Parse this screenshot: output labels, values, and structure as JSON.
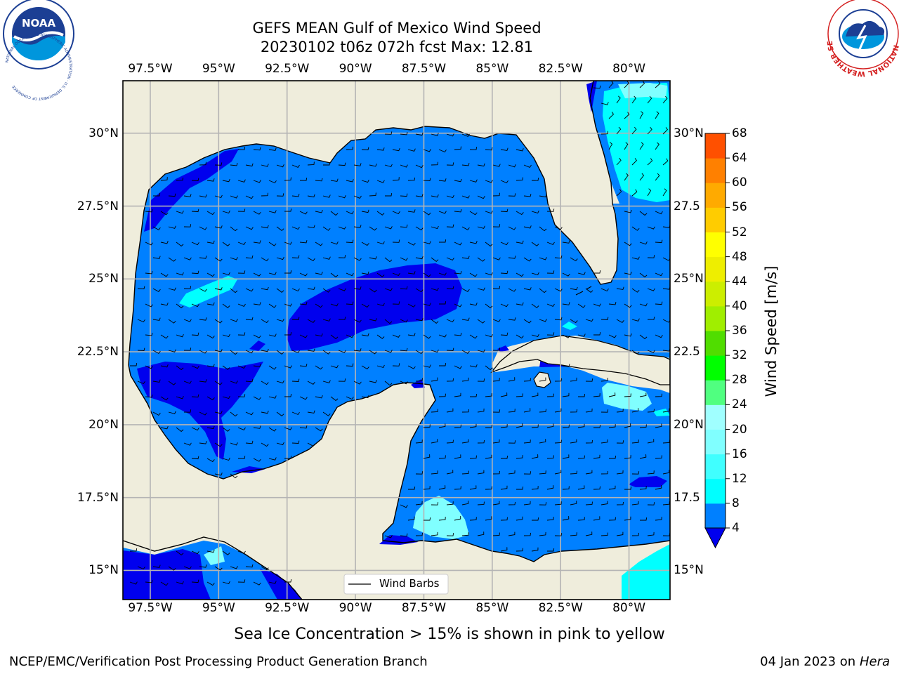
{
  "title": {
    "line1": "GEFS MEAN Gulf of Mexico Wind Speed",
    "line2": "20230102 t06z 072h fcst   Max: 12.81"
  },
  "axes": {
    "lon_labels": [
      "97.5°W",
      "95°W",
      "92.5°W",
      "90°W",
      "87.5°W",
      "85°W",
      "82.5°W",
      "80°W"
    ],
    "lat_labels_left": [
      "30°N",
      "27.5°N",
      "25°N",
      "22.5°N",
      "20°N",
      "17.5°N",
      "15°N"
    ],
    "lat_labels_right": [
      "30°N",
      "27.5",
      "25°N",
      "22.5",
      "20°N",
      "17.5",
      "15°N"
    ]
  },
  "colorbar": {
    "label": "Wind Speed [m/s]",
    "ticks": [
      "4",
      "8",
      "12",
      "16",
      "20",
      "24",
      "28",
      "32",
      "36",
      "40",
      "44",
      "48",
      "52",
      "56",
      "60",
      "64",
      "68"
    ],
    "colors": [
      "#0080ff",
      "#00ffff",
      "#40ffff",
      "#80ffff",
      "#a0ffff",
      "#50ff80",
      "#00ff00",
      "#50dd00",
      "#a0ee00",
      "#ccee00",
      "#eeee00",
      "#ffff00",
      "#ffcc00",
      "#ffaa00",
      "#ff8000",
      "#ff5000",
      "#ff2000",
      "#ff0000"
    ],
    "under_color": "#0000ee"
  },
  "legend": {
    "label": "Wind Barbs"
  },
  "note": "Sea Ice Concentration > 15% is shown in pink to yellow",
  "footer": {
    "left": "NCEP/EMC/Verification Post Processing Product Generation Branch",
    "right_prefix": "04 Jan 2023 on ",
    "right_italic": "Hera"
  },
  "logos": {
    "noaa": "NOAA",
    "noaa_ring": "NATIONAL OCEANIC AND ATMOSPHERIC ADMINISTRATION · U.S. DEPARTMENT OF COMMERCE",
    "nws_ring": "NATIONAL WEATHER SERVICE"
  },
  "map_colors": {
    "land": "#efeddc",
    "ocean": "#0080ff",
    "calm": "#0000ee",
    "mid": "#00ffff",
    "high": "#80ffff",
    "grid": "#b4b4b4"
  },
  "chart_data": {
    "type": "heatmap",
    "title": "GEFS MEAN Gulf of Mexico Wind Speed",
    "subtitle": "20230102 t06z 072h fcst   Max: 12.81",
    "lon_range": [
      -98.5,
      -78.5
    ],
    "lat_range": [
      14.0,
      31.8
    ],
    "lon_ticks": [
      -97.5,
      -95,
      -92.5,
      -90,
      -87.5,
      -85,
      -82.5,
      -80
    ],
    "lat_ticks": [
      15,
      17.5,
      20,
      22.5,
      25,
      27.5,
      30
    ],
    "color_levels": [
      4,
      8,
      12,
      16,
      20,
      24,
      28,
      32,
      36,
      40,
      44,
      48,
      52,
      56,
      60,
      64,
      68
    ],
    "max_value": 12.81,
    "units": "m/s",
    "grid": true,
    "legend_position": "bottom-center"
  }
}
